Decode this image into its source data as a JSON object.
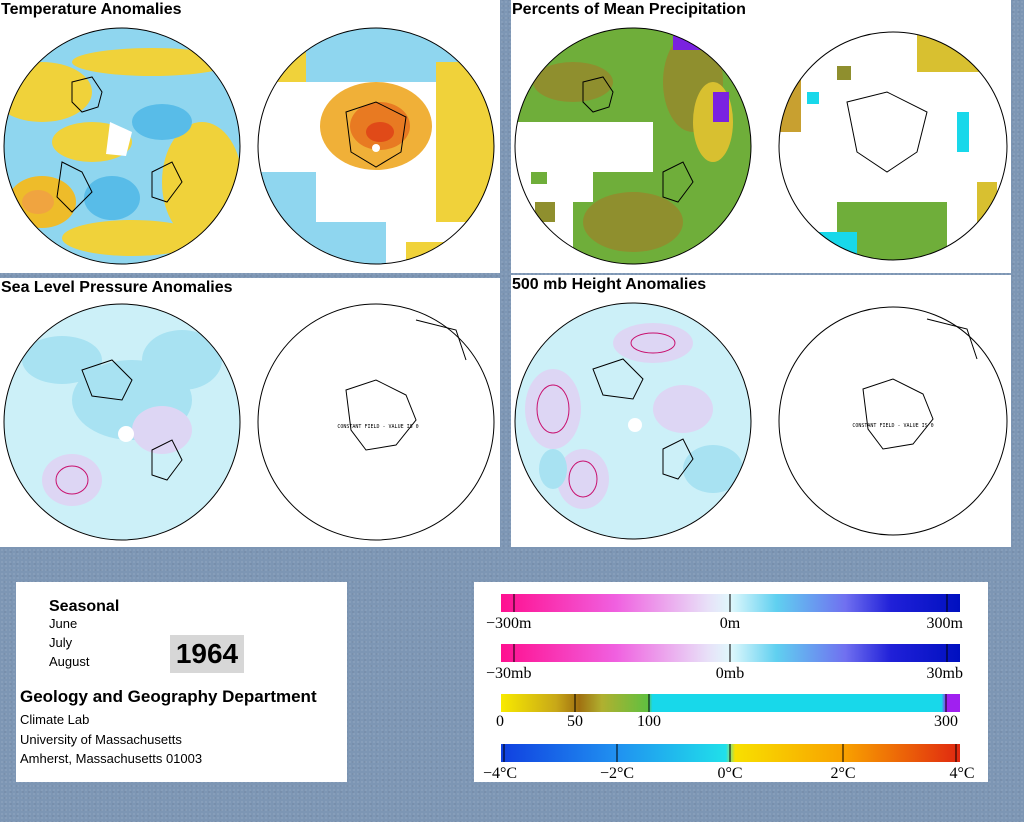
{
  "panels": {
    "temp": {
      "title": "Temperature Anomalies"
    },
    "precip": {
      "title": "Percents of Mean Precipitation"
    },
    "slp": {
      "title": "Sea Level Pressure Anomalies",
      "constant_field_label": "CONSTANT FIELD - VALUE IS 0"
    },
    "height": {
      "title": "500 mb Height Anomalies",
      "constant_field_label": "CONSTANT FIELD - VALUE IS 0"
    }
  },
  "info": {
    "season": "Seasonal",
    "months": [
      "June",
      "July",
      "August"
    ],
    "year": "1964",
    "department": "Geology and Geography Department",
    "lab": "Climate Lab",
    "university": "University of Massachusetts",
    "city": "Amherst, Massachusetts 01003"
  },
  "legend": {
    "height_scale": {
      "min_label": "−300m",
      "mid_label": "0m",
      "max_label": "300m"
    },
    "pressure_scale": {
      "min_label": "−30mb",
      "mid_label": "0mb",
      "max_label": "30mb"
    },
    "precip_scale": {
      "labels": [
        "0",
        "50",
        "100",
        "300"
      ]
    },
    "temp_scale": {
      "labels": [
        "−4°C",
        "−2°C",
        "0°C",
        "2°C",
        "4°C"
      ]
    }
  },
  "colors": {
    "background": "#7d96b4",
    "anomaly_negative_pink": "#ff10a0",
    "anomaly_positive_blue": "#0010c8",
    "precip_dry_yellow": "#f8ea00",
    "precip_mid_olive": "#889a22",
    "precip_wet_cyan": "#18d8ea",
    "precip_max_purple": "#a020f0",
    "temp_cold_blue": "#1050e0",
    "temp_neutral_cyan": "#20e0ea",
    "temp_warm_red": "#e83a10",
    "land_outline": "#000000"
  }
}
